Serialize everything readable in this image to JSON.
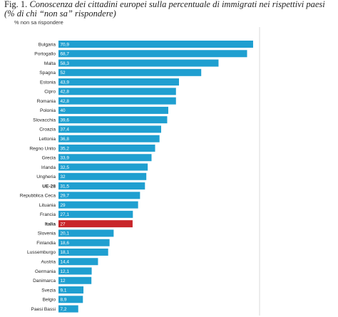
{
  "caption": {
    "fig": "Fig. 1.",
    "text": "Conoscenza dei cittadini europei sulla percentuale di immigrati nei rispettivi paesi (% di chi “non sa” rispondere)"
  },
  "colors": {
    "bar": "#1f9fd0",
    "highlight": "#c8262a",
    "gridline": "#d9d9d9"
  },
  "chart_data": {
    "type": "bar",
    "orientation": "horizontal",
    "subtitle": "% non sa rispondere",
    "categories": [
      "Bulgaria",
      "Portogallo",
      "Malta",
      "Spagna",
      "Estonia",
      "Cipro",
      "Romania",
      "Polonia",
      "Slovacchia",
      "Croazia",
      "Lettonia",
      "Regno Unito",
      "Grecia",
      "Irlanda",
      "Ungheria",
      "UE-28",
      "Repubblica Ceca",
      "Lituania",
      "Francia",
      "Italia",
      "Slovenia",
      "Finlandia",
      "Lussemburgo",
      "Austria",
      "Germania",
      "Danimarca",
      "Svezia",
      "Belgio",
      "Paesi Bassi"
    ],
    "values": [
      70.9,
      68.7,
      58.3,
      52,
      43.9,
      42.8,
      42.8,
      40,
      39.6,
      37.4,
      36.8,
      35.2,
      33.9,
      32.5,
      32,
      31.5,
      29.7,
      29,
      27.1,
      27,
      20.1,
      18.6,
      18.1,
      14.4,
      12.1,
      12,
      9.1,
      8.9,
      7.2
    ],
    "labels": [
      "70,9",
      "68,7",
      "58,3",
      "52",
      "43,9",
      "42,8",
      "42,8",
      "40",
      "39,6",
      "37,4",
      "36,8",
      "35,2",
      "33,9",
      "32,5",
      "32",
      "31,5",
      "29,7",
      "29",
      "27,1",
      "27",
      "20,1",
      "18,6",
      "18,1",
      "14,4",
      "12,1",
      "12",
      "9,1",
      "8,9",
      "7,2"
    ],
    "bold_categories": [
      "UE-28",
      "Italia"
    ],
    "highlight": "Italia",
    "xlim": [
      0,
      72
    ],
    "grid": false,
    "legend": "none"
  }
}
